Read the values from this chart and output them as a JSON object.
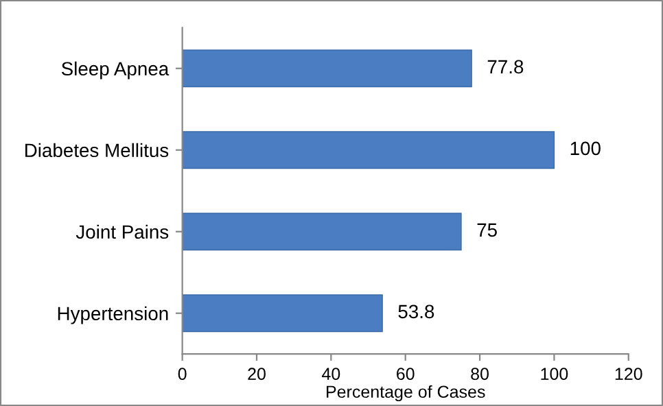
{
  "chart_data": {
    "type": "bar",
    "orientation": "horizontal",
    "xlabel": "Percentage of Cases",
    "categories": [
      "Sleep Apnea",
      "Diabetes Mellitus",
      "Joint Pains",
      "Hypertension"
    ],
    "values": [
      77.8,
      100,
      75,
      53.8
    ],
    "color": "#4a7dc2",
    "xlim": [
      0,
      120
    ],
    "xticks": [
      0,
      20,
      40,
      60,
      80,
      100,
      120
    ],
    "grid": false,
    "data_labels": true
  }
}
